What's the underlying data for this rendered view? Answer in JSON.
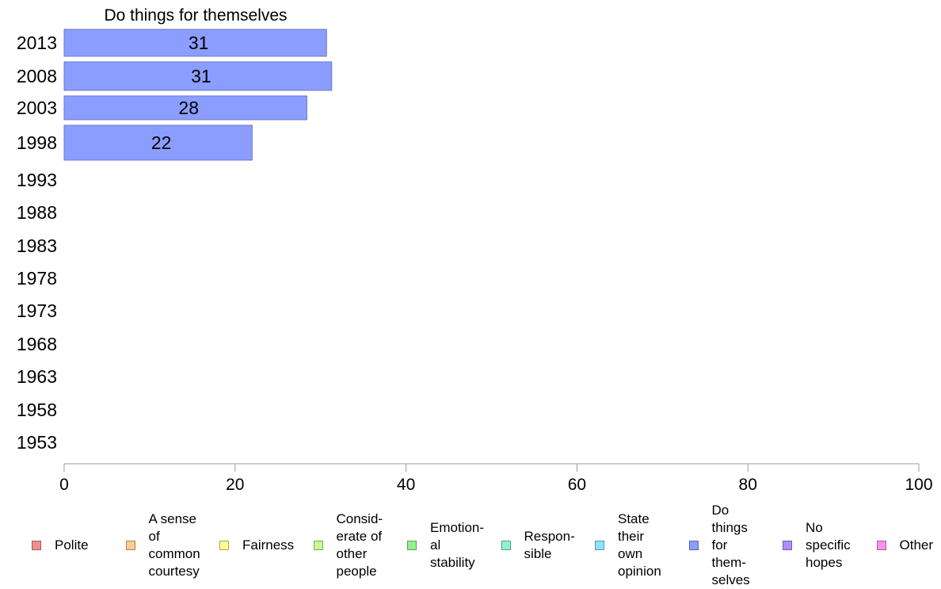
{
  "chart_data": {
    "type": "bar",
    "orientation": "horizontal",
    "title": "Do things for themselves",
    "xlabel": "",
    "ylabel": "",
    "xlim": [
      0,
      100
    ],
    "x_ticks": [
      "0",
      "20",
      "40",
      "60",
      "80",
      "100"
    ],
    "grid": false,
    "categories": [
      "2013",
      "2008",
      "2003",
      "1998",
      "1993",
      "1988",
      "1983",
      "1978",
      "1973",
      "1968",
      "1963",
      "1958",
      "1953"
    ],
    "series": [
      {
        "name": "Do things for themselves",
        "color": "#8b9dff",
        "values": [
          30.7,
          31.3,
          28.4,
          22.0,
          null,
          null,
          null,
          null,
          null,
          null,
          null,
          null,
          null
        ],
        "labels": [
          "31",
          "31",
          "28",
          "22",
          "",
          "",
          "",
          "",
          "",
          "",
          "",
          "",
          ""
        ]
      }
    ],
    "legend": {
      "position": "bottom",
      "items": [
        {
          "label": "Polite",
          "color": "#f28e8e"
        },
        {
          "label": "A sense of common courtesy",
          "color": "#ffcc8f"
        },
        {
          "label": "Fairness",
          "color": "#ffff8f"
        },
        {
          "label": "Consid-erate of other people",
          "color": "#c6ff8f"
        },
        {
          "label": "Emotion-al stability",
          "color": "#8ff28f"
        },
        {
          "label": "Respon-sible",
          "color": "#8ff2d6"
        },
        {
          "label": "State their own opinion",
          "color": "#8fe2ff"
        },
        {
          "label": "Do things for them-selves",
          "color": "#8b9dff"
        },
        {
          "label": "No specific hopes",
          "color": "#ae8fff"
        },
        {
          "label": "Other",
          "color": "#ff8ff2"
        }
      ]
    }
  }
}
